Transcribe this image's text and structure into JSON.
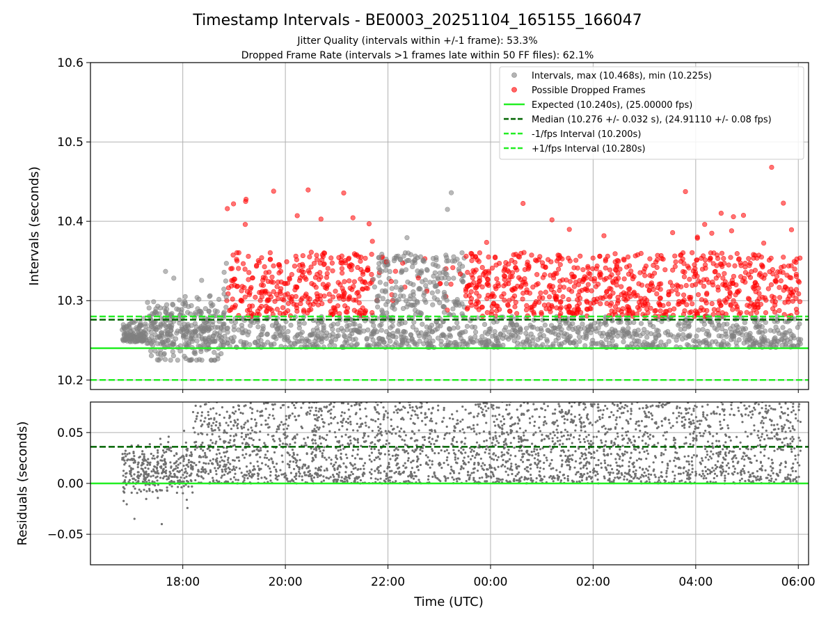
{
  "chart_data": {
    "type": "scatter",
    "title": "Timestamp Intervals - BE0003_20251104_165155_166047",
    "subtitle_lines": [
      "Jitter Quality (intervals within +/-1 frame): 53.3%",
      "Dropped Frame Rate (intervals >1 frames late within 50 FF files): 62.1%"
    ],
    "xlabel": "Time (UTC)",
    "x_ticks": [
      "18:00",
      "20:00",
      "22:00",
      "00:00",
      "02:00",
      "04:00",
      "06:00"
    ],
    "x_range_hours": [
      16.2,
      30.2
    ],
    "x_data_range_hours": [
      16.82,
      30.05
    ],
    "grid": true,
    "legend_position": "upper-right",
    "top_panel": {
      "ylabel": "Intervals (seconds)",
      "ylim": [
        10.188,
        10.6
      ],
      "y_ticks": [
        "10.2",
        "10.3",
        "10.4",
        "10.5",
        "10.6"
      ],
      "y_tick_values": [
        10.2,
        10.3,
        10.4,
        10.5,
        10.6
      ],
      "series": [
        {
          "name": "Intervals, max (10.468s), min (10.225s)",
          "kind": "scatter",
          "color": "#808080",
          "max": 10.468,
          "min": 10.225
        },
        {
          "name": "Possible Dropped Frames",
          "kind": "scatter",
          "color": "#ff0000",
          "threshold": 10.28
        },
        {
          "name": "Expected (10.240s), (25.00000 fps)",
          "kind": "hline",
          "value": 10.24,
          "color": "#22ee22",
          "style": "solid"
        },
        {
          "name": "Median (10.276 +/- 0.032 s), (24.91110 +/- 0.08 fps)",
          "kind": "hline",
          "value": 10.276,
          "color": "#006400",
          "style": "dashed"
        },
        {
          "name": "-1/fps Interval (10.200s)",
          "kind": "hline",
          "value": 10.2,
          "color": "#22ee22",
          "style": "dashed"
        },
        {
          "name": "+1/fps Interval (10.280s)",
          "kind": "hline",
          "value": 10.28,
          "color": "#22ee22",
          "style": "dashed"
        }
      ]
    },
    "bottom_panel": {
      "ylabel": "Residuals (seconds)",
      "ylim": [
        -0.08,
        0.08
      ],
      "y_ticks": [
        "0.05",
        "0.00",
        "−0.05"
      ],
      "y_tick_values": [
        0.05,
        0.0,
        -0.05
      ],
      "lines": [
        {
          "value": 0.0,
          "color": "#22ee22",
          "style": "solid"
        },
        {
          "value": 0.036,
          "color": "#006400",
          "style": "dashed"
        }
      ],
      "point_color": "#707070"
    },
    "colors": {
      "intervals": "#808080",
      "dropped": "#ff0000",
      "expected": "#22ee22",
      "median": "#006400"
    }
  }
}
